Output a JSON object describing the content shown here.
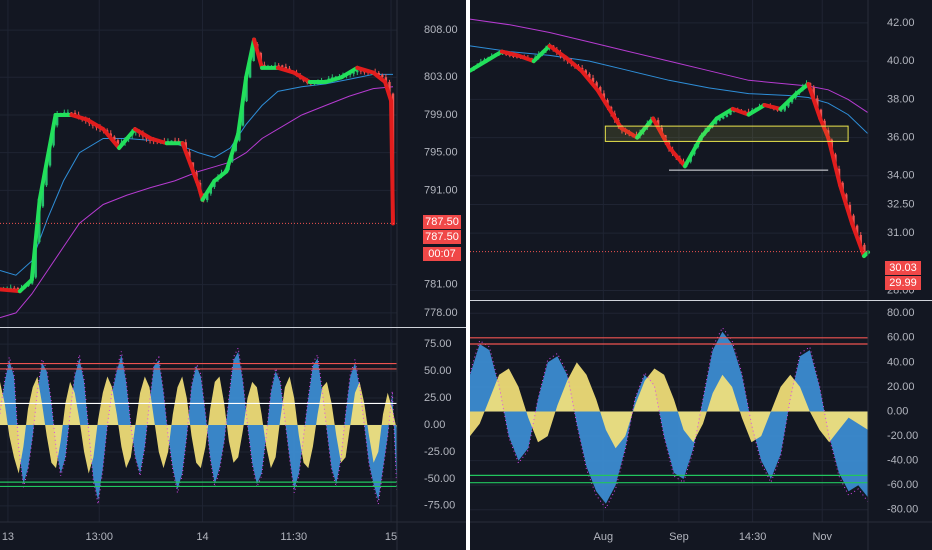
{
  "colors": {
    "background": "#131722",
    "grid": "#1f2433",
    "axis_text": "#b2b5be",
    "candle_up": "#26c26e",
    "candle_down": "#ef5350",
    "trend_up": "#22e05b",
    "trend_down": "#e11d1d",
    "ma_fast": "#2e8ed8",
    "ma_slow": "#b63bd1",
    "osc_blue": "#3d8fd6",
    "osc_yellow": "#f4e27a",
    "level_red": "#ef5350",
    "level_green": "#22c55e",
    "price_tag": "#f04848",
    "box_yellow": "#e9e44d",
    "divider": "#d0d3da"
  },
  "chart_data": [
    {
      "type": "line",
      "panel": "left-price",
      "y_ticks": [
        "808.00",
        "803.00",
        "799.00",
        "795.00",
        "791.00",
        "781.00",
        "778.00"
      ],
      "y_tick_values": [
        808,
        803,
        799,
        795,
        791,
        781,
        778
      ],
      "ylim": [
        776.5,
        811.2
      ],
      "price_tags": [
        "787.50",
        "787.50",
        "00:07"
      ],
      "last_price": 787.5,
      "x_ticks": [
        "13",
        "13:00",
        "14",
        "11:30",
        "15"
      ],
      "x_tick_positions": [
        0.02,
        0.25,
        0.51,
        0.74,
        0.985
      ],
      "series": [
        {
          "role": "price",
          "x": [
            0,
            0.05,
            0.08,
            0.1,
            0.14,
            0.18,
            0.22,
            0.26,
            0.3,
            0.34,
            0.38,
            0.42,
            0.46,
            0.5,
            0.51,
            0.54,
            0.57,
            0.6,
            0.62,
            0.64,
            0.66,
            0.7,
            0.74,
            0.78,
            0.82,
            0.86,
            0.9,
            0.94,
            0.97,
            0.985,
            0.99
          ],
          "values": [
            780.5,
            780.3,
            781.5,
            790,
            799,
            799,
            798.5,
            797.5,
            795.5,
            797.5,
            796.5,
            796,
            796,
            791.5,
            790,
            792,
            793,
            797,
            803,
            807,
            804,
            804,
            803.5,
            802.5,
            802.5,
            803,
            804,
            803.5,
            802.5,
            800.5,
            787.5
          ]
        },
        {
          "role": "moving-average-fast",
          "x": [
            0,
            0.04,
            0.08,
            0.12,
            0.16,
            0.2,
            0.26,
            0.32,
            0.38,
            0.44,
            0.5,
            0.54,
            0.58,
            0.62,
            0.66,
            0.7,
            0.76,
            0.82,
            0.88,
            0.94,
            0.99
          ],
          "values": [
            782.5,
            782,
            783.5,
            788,
            792,
            795,
            796.5,
            796.5,
            796.3,
            796,
            795,
            794.5,
            795.5,
            798,
            800,
            801.5,
            802,
            802.3,
            802.8,
            803.3,
            803.3
          ]
        },
        {
          "role": "moving-average-slow",
          "x": [
            0,
            0.04,
            0.08,
            0.12,
            0.16,
            0.2,
            0.26,
            0.32,
            0.38,
            0.44,
            0.5,
            0.54,
            0.58,
            0.62,
            0.66,
            0.7,
            0.76,
            0.82,
            0.88,
            0.94,
            0.99
          ],
          "values": [
            777.5,
            778,
            780,
            782.5,
            785,
            787.5,
            789.5,
            790.5,
            791.3,
            792,
            793,
            793.5,
            794,
            795,
            796.5,
            797.5,
            799,
            800,
            801,
            801.8,
            802
          ]
        }
      ]
    },
    {
      "type": "area",
      "panel": "left-oscillator",
      "y_ticks": [
        "75.00",
        "50.00",
        "25.00",
        "0.00",
        "-25.00",
        "-50.00",
        "-75.00"
      ],
      "y_tick_values": [
        75,
        50,
        25,
        0,
        -25,
        -50,
        -75
      ],
      "ylim": [
        -90,
        90
      ],
      "levels": [
        {
          "value": 57,
          "color": "red"
        },
        {
          "value": 52,
          "color": "red"
        },
        {
          "value": 20,
          "color": "white"
        },
        {
          "value": -53,
          "color": "green"
        },
        {
          "value": -57,
          "color": "green"
        }
      ],
      "series": [
        {
          "role": "blue-area",
          "values": [
            10,
            40,
            60,
            45,
            -20,
            -55,
            -40,
            -10,
            30,
            58,
            50,
            20,
            -20,
            -45,
            -30,
            10,
            45,
            62,
            40,
            -5,
            -50,
            -70,
            -40,
            0,
            30,
            50,
            65,
            40,
            0,
            -30,
            -45,
            -20,
            20,
            55,
            60,
            30,
            -10,
            -40,
            -60,
            -45,
            -10,
            35,
            55,
            45,
            10,
            -30,
            -55,
            -40,
            -15,
            25,
            60,
            68,
            40,
            0,
            -35,
            -55,
            -45,
            -10,
            30,
            50,
            40,
            5,
            -30,
            -60,
            -45,
            -10,
            25,
            55,
            62,
            30,
            -5,
            -40,
            -55,
            -30,
            10,
            45,
            58,
            35,
            0,
            -35,
            -55,
            -70,
            -40,
            -10,
            30,
            -60
          ]
        },
        {
          "role": "yellow-area",
          "values": [
            40,
            20,
            -10,
            -30,
            -45,
            -20,
            15,
            35,
            45,
            20,
            -10,
            -35,
            -40,
            -15,
            20,
            40,
            30,
            5,
            -25,
            -45,
            -30,
            5,
            30,
            45,
            35,
            10,
            -20,
            -40,
            -30,
            0,
            30,
            45,
            35,
            5,
            -25,
            -40,
            -25,
            10,
            35,
            45,
            25,
            -10,
            -35,
            -40,
            -20,
            15,
            40,
            45,
            20,
            -15,
            -35,
            -30,
            -5,
            25,
            40,
            35,
            10,
            -20,
            -40,
            -30,
            5,
            35,
            45,
            25,
            -10,
            -35,
            -40,
            -20,
            10,
            35,
            40,
            20,
            -10,
            -35,
            -30,
            0,
            30,
            40,
            20,
            -10,
            -35,
            -25,
            10,
            30,
            15,
            -5
          ]
        }
      ]
    },
    {
      "type": "line",
      "panel": "right-price",
      "y_ticks": [
        "42.00",
        "40.00",
        "38.00",
        "36.00",
        "34.00",
        "32.50",
        "31.00",
        "28.00"
      ],
      "y_tick_values": [
        42,
        40,
        38,
        36,
        34,
        32.5,
        31,
        28
      ],
      "ylim": [
        27.5,
        43.2
      ],
      "price_tags": [
        "30.03",
        "29.99"
      ],
      "last_price": 30.03,
      "x_ticks": [
        "Aug",
        "Sep",
        "14:30",
        "Nov"
      ],
      "x_tick_positions": [
        0.335,
        0.525,
        0.71,
        0.885
      ],
      "box": {
        "x_range": [
          0.34,
          0.95
        ],
        "y_range": [
          35.8,
          36.6
        ]
      },
      "support_line": {
        "x_range": [
          0.5,
          0.9
        ],
        "value": 34.3
      },
      "series": [
        {
          "role": "price",
          "x": [
            0,
            0.04,
            0.08,
            0.12,
            0.16,
            0.2,
            0.24,
            0.28,
            0.32,
            0.35,
            0.38,
            0.42,
            0.46,
            0.5,
            0.54,
            0.58,
            0.62,
            0.66,
            0.7,
            0.74,
            0.78,
            0.82,
            0.85,
            0.88,
            0.9,
            0.93,
            0.96,
            0.99,
            1.0
          ],
          "values": [
            39.5,
            40,
            40.5,
            40.3,
            40,
            40.8,
            40.2,
            39.5,
            38.5,
            37.5,
            36.5,
            36,
            37,
            35.5,
            34.5,
            36,
            37,
            37.5,
            37.2,
            37.7,
            37.5,
            38.3,
            38.8,
            37,
            36,
            33.5,
            31.5,
            29.8,
            30
          ]
        },
        {
          "role": "moving-average-fast",
          "x": [
            0,
            0.1,
            0.2,
            0.3,
            0.4,
            0.5,
            0.6,
            0.7,
            0.8,
            0.85,
            0.9,
            0.95,
            1.0
          ],
          "values": [
            40.8,
            40.5,
            40.3,
            40,
            39.5,
            39,
            38.6,
            38.3,
            38.2,
            38.1,
            37.8,
            37.2,
            36.2
          ]
        },
        {
          "role": "moving-average-slow",
          "x": [
            0,
            0.1,
            0.2,
            0.3,
            0.4,
            0.5,
            0.6,
            0.7,
            0.8,
            0.85,
            0.9,
            0.95,
            1.0
          ],
          "values": [
            42.2,
            41.9,
            41.5,
            41,
            40.5,
            40,
            39.5,
            39,
            38.8,
            38.7,
            38.5,
            38,
            37.3
          ]
        }
      ]
    },
    {
      "type": "area",
      "panel": "right-oscillator",
      "y_ticks": [
        "80.00",
        "60.00",
        "40.00",
        "20.00",
        "0.00",
        "-20.00",
        "-40.00",
        "-60.00",
        "-80.00"
      ],
      "y_tick_values": [
        80,
        60,
        40,
        20,
        0,
        -20,
        -40,
        -60,
        -80
      ],
      "ylim": [
        -90,
        90
      ],
      "levels": [
        {
          "value": 60,
          "color": "red"
        },
        {
          "value": 55,
          "color": "red"
        },
        {
          "value": -52,
          "color": "green"
        },
        {
          "value": -58,
          "color": "green"
        }
      ],
      "series": [
        {
          "role": "blue-area",
          "values": [
            30,
            55,
            50,
            20,
            -20,
            -40,
            -30,
            10,
            40,
            45,
            30,
            -10,
            -45,
            -65,
            -75,
            -60,
            -30,
            10,
            30,
            20,
            -20,
            -50,
            -55,
            -30,
            10,
            50,
            65,
            55,
            30,
            -10,
            -40,
            -55,
            -35,
            10,
            45,
            50,
            20,
            -20,
            -50,
            -65,
            -60,
            -70
          ]
        },
        {
          "role": "yellow-area",
          "values": [
            -20,
            -10,
            10,
            30,
            35,
            20,
            -5,
            -25,
            -20,
            5,
            25,
            40,
            30,
            10,
            -15,
            -30,
            -20,
            5,
            25,
            35,
            30,
            10,
            -15,
            -25,
            -10,
            15,
            30,
            20,
            -5,
            -25,
            -20,
            0,
            20,
            30,
            20,
            0,
            -15,
            -25,
            -15,
            -5,
            -10,
            -15
          ]
        }
      ]
    }
  ]
}
